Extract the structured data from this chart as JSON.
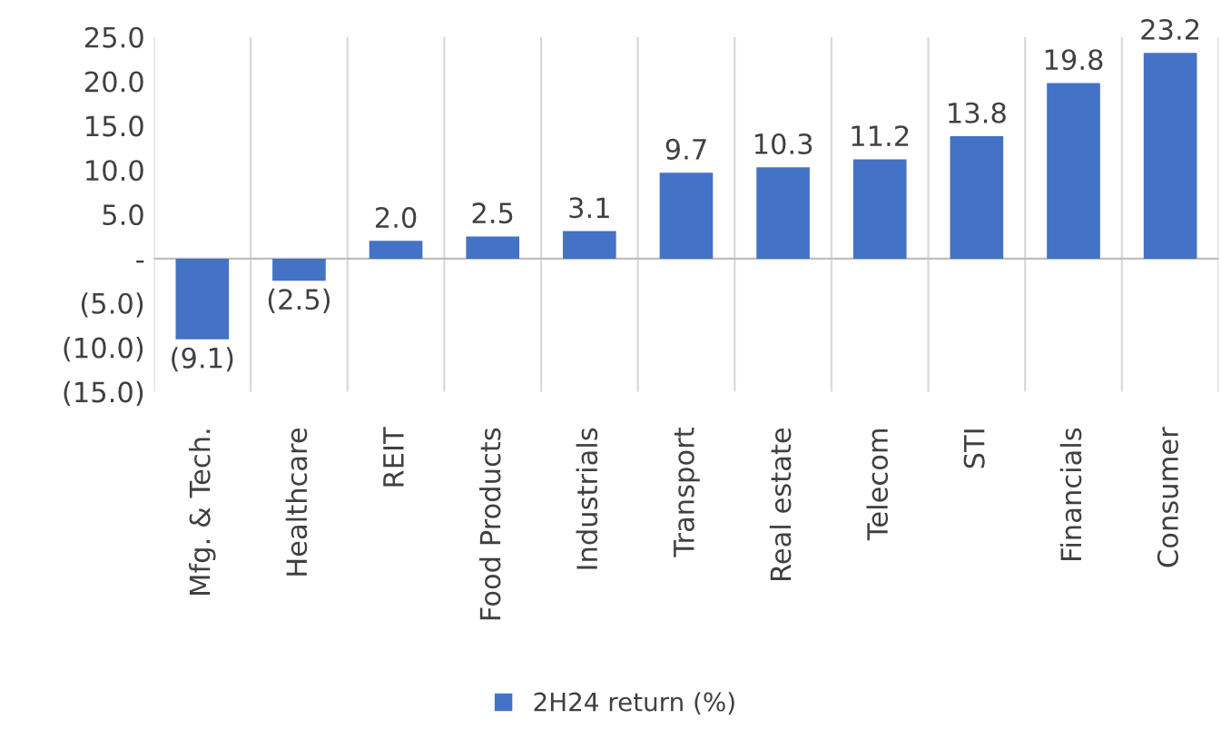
{
  "chart_data": {
    "type": "bar",
    "categories": [
      "Mfg. & Tech.",
      "Healthcare",
      "REIT",
      "Food Products",
      "Industrials",
      "Transport",
      "Real estate",
      "Telecom",
      "STI",
      "Financials",
      "Consumer"
    ],
    "series": [
      {
        "name": "2H24 return (%)",
        "color": "#4472c4",
        "values": [
          -9.1,
          -2.5,
          2.0,
          2.5,
          3.1,
          9.7,
          10.3,
          11.2,
          13.8,
          19.8,
          23.2
        ],
        "value_labels": [
          "(9.1)",
          "(2.5)",
          "2.0",
          "2.5",
          "3.1",
          "9.7",
          "10.3",
          "11.2",
          "13.8",
          "19.8",
          "23.2"
        ]
      }
    ],
    "ylim": [
      -15,
      25
    ],
    "yticks": [
      {
        "value": -15,
        "label": "(15.0)"
      },
      {
        "value": -10,
        "label": "(10.0)"
      },
      {
        "value": -5,
        "label": "(5.0)"
      },
      {
        "value": 0,
        "label": "-"
      },
      {
        "value": 5,
        "label": "5.0"
      },
      {
        "value": 10,
        "label": "10.0"
      },
      {
        "value": 15,
        "label": "15.0"
      },
      {
        "value": 20,
        "label": "20.0"
      },
      {
        "value": 25,
        "label": "25.0"
      }
    ],
    "grid": "x",
    "legend": "bottom"
  }
}
